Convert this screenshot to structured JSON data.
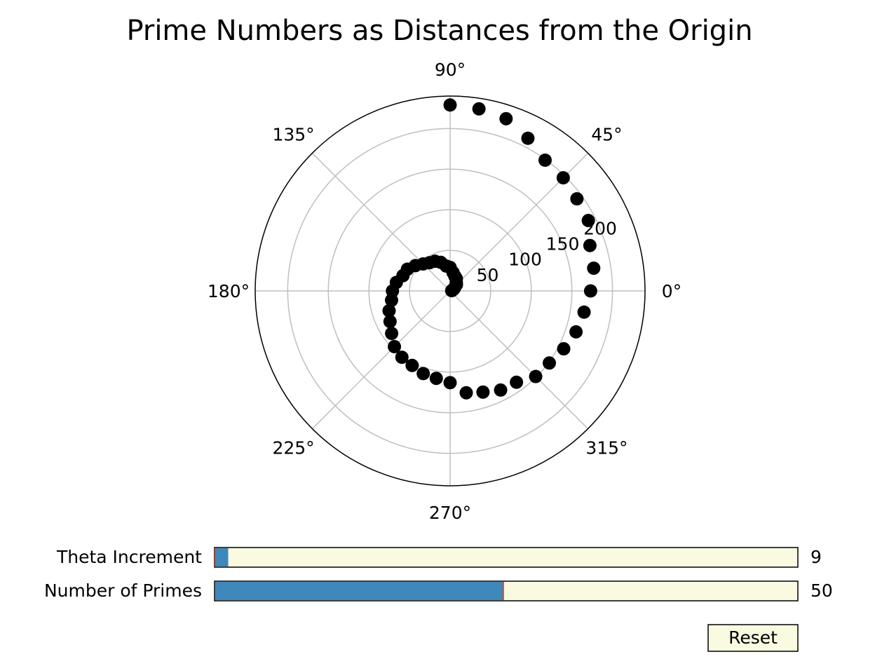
{
  "chart_data": {
    "type": "scatter",
    "projection": "polar",
    "title": "Prime Numbers as Distances from the Origin",
    "theta_tick_labels": [
      "0°",
      "45°",
      "90°",
      "135°",
      "180°",
      "225°",
      "270°",
      "315°"
    ],
    "theta_ticks_deg": [
      0,
      45,
      90,
      135,
      180,
      225,
      270,
      315
    ],
    "r_tick_labels": [
      "50",
      "100",
      "150",
      "200"
    ],
    "r_ticks": [
      50,
      100,
      150,
      200
    ],
    "r_lim": [
      0,
      240
    ],
    "theta_increment_deg": 9,
    "grid": true,
    "marker_color": "#000000",
    "primes": [
      2,
      3,
      5,
      7,
      11,
      13,
      17,
      19,
      23,
      29,
      31,
      37,
      41,
      43,
      47,
      53,
      59,
      61,
      67,
      71,
      73,
      79,
      83,
      89,
      97,
      101,
      103,
      107,
      109,
      113,
      127,
      131,
      137,
      139,
      149,
      151,
      157,
      163,
      167,
      173,
      179,
      181,
      191,
      193,
      197,
      199,
      211,
      223,
      227,
      229
    ]
  },
  "controls": {
    "theta_slider": {
      "label": "Theta Increment",
      "value": 9,
      "value_text": "9",
      "min": 1,
      "max": 360,
      "init": 1
    },
    "primes_slider": {
      "label": "Number of Primes",
      "value": 50,
      "value_text": "50",
      "min": 1,
      "max": 100,
      "init": 50
    },
    "reset_label": "Reset"
  },
  "colors": {
    "slider_fill": "#3f88bc",
    "slider_track": "#fafae1",
    "slider_marker": "#d9472b",
    "button_bg": "#fafae1",
    "grid": "#bfbfbf"
  }
}
